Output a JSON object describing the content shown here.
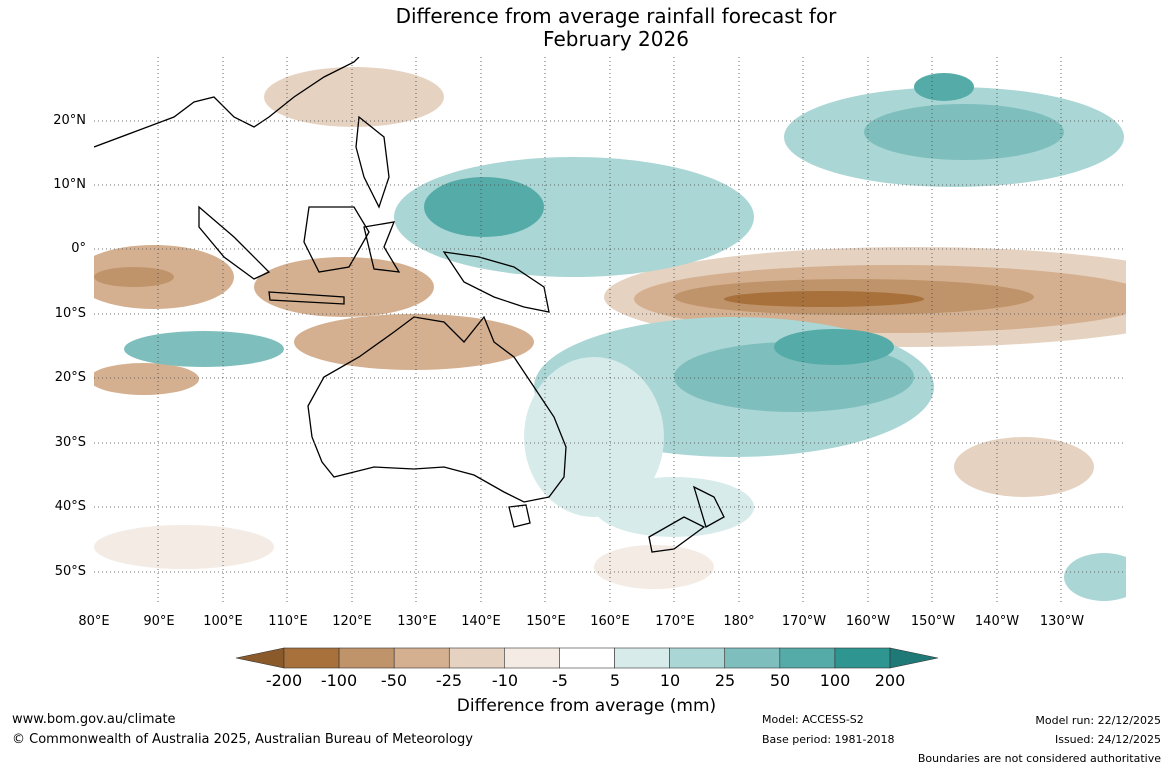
{
  "title_line1": "Difference from average rainfall forecast for",
  "title_line2": "February 2026",
  "map": {
    "lat_labels": [
      "20°N",
      "10°N",
      "0°",
      "10°S",
      "20°S",
      "30°S",
      "40°S",
      "50°S"
    ],
    "lon_labels": [
      "80°E",
      "90°E",
      "100°E",
      "110°E",
      "120°E",
      "130°E",
      "140°E",
      "150°E",
      "160°E",
      "170°E",
      "180°",
      "170°W",
      "160°W",
      "150°W",
      "140°W",
      "130°W"
    ],
    "dry_colors": [
      "#a8703a",
      "#c0946a",
      "#d4b090",
      "#e6d2c0",
      "#f3ebe4"
    ],
    "wet_colors": [
      "#d6ebea",
      "#aad6d5",
      "#7ebfbd",
      "#55aba8",
      "#2e9591"
    ]
  },
  "colorbar": {
    "ticks": [
      "-200",
      "-100",
      "-50",
      "-25",
      "-10",
      "-5",
      "5",
      "10",
      "25",
      "50",
      "100",
      "200"
    ],
    "colors": [
      "#a8703a",
      "#c0946a",
      "#d4b090",
      "#e6d2c0",
      "#f3ebe4",
      "#ffffff",
      "#d6ebea",
      "#aad6d5",
      "#7ebfbd",
      "#55aba8",
      "#2e9591"
    ],
    "end_low_color": "#8b5a2b",
    "end_high_color": "#1f7a77",
    "label": "Difference from average (mm)"
  },
  "footer": {
    "website": "www.bom.gov.au/climate",
    "copyright": "© Commonwealth of Australia 2025, Australian Bureau of Meteorology",
    "model": "Model: ACCESS-S2",
    "base_period": "Base period: 1981-2018",
    "model_run": "Model run: 22/12/2025",
    "issued": "Issued: 24/12/2025",
    "disclaimer": "Boundaries are not considered authoritative"
  }
}
